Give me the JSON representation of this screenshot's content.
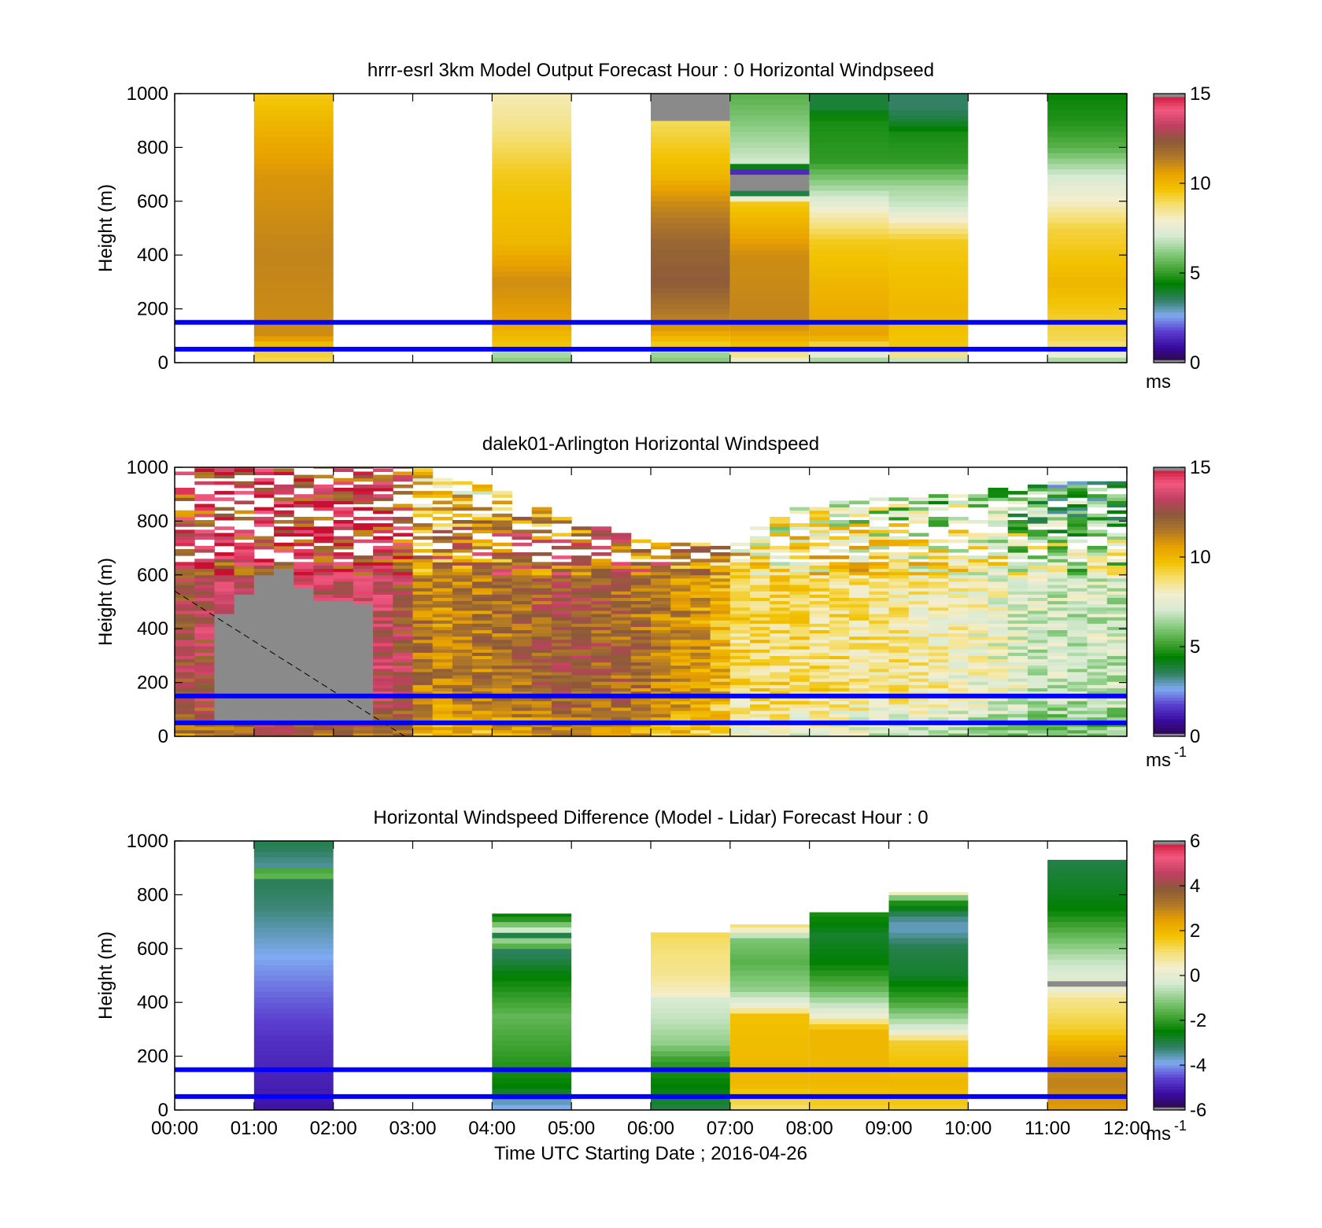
{
  "figure": {
    "xlabel": "Time UTC  Starting Date ; 2016-04-26"
  },
  "colors": {
    "speed_colormap": [
      "#2a0a40",
      "#3a0aa0",
      "#5a3fd0",
      "#7faaf0",
      "#2f8060",
      "#008000",
      "#49a83a",
      "#8ccd84",
      "#d6ead2",
      "#f3eed0",
      "#f5df70",
      "#f2c200",
      "#e8a000",
      "#b07828",
      "#8b5a3a",
      "#c04060",
      "#f25880",
      "#c81030"
    ],
    "diff_colormap": [
      "#2a0a40",
      "#3a0aa0",
      "#5a3fd0",
      "#7faaf0",
      "#2f8060",
      "#008000",
      "#49a83a",
      "#8ccd84",
      "#d6ead2",
      "#f3eed0",
      "#f5df70",
      "#f2c200",
      "#e8a000",
      "#b07828",
      "#8b5a3a",
      "#c04060",
      "#f25880",
      "#c81030"
    ],
    "missing": "#8a8a8a",
    "reference_line": "#0000ff"
  },
  "chart_data": [
    {
      "id": "model",
      "type": "heatmap",
      "title": "hrrr-esrl 3km Model Output   Forecast Hour : 0 Horizontal Windpseed",
      "xlabel": "",
      "ylabel": "Height (m)",
      "xticks": [
        "00:00",
        "01:00",
        "02:00",
        "03:00",
        "04:00",
        "05:00",
        "06:00",
        "07:00",
        "08:00",
        "09:00",
        "10:00",
        "11:00",
        "12:00"
      ],
      "xtick_labels_visible": false,
      "xlim": [
        0,
        12
      ],
      "ylim": [
        0,
        1000
      ],
      "yticks": [
        0,
        200,
        400,
        600,
        800,
        1000
      ],
      "colorbar": {
        "range": [
          0,
          15
        ],
        "ticks": [
          0,
          5,
          10,
          15
        ],
        "unit": "ms",
        "unit_exp": ""
      },
      "reference_lines_m": [
        50,
        150
      ],
      "columns": [
        {
          "t0": 1,
          "t1": 2,
          "z_top": 1000,
          "profile": [
            [
              0,
              9
            ],
            [
              60,
              9.5
            ],
            [
              100,
              11
            ],
            [
              400,
              11.2
            ],
            [
              700,
              10.8
            ],
            [
              900,
              10
            ],
            [
              1000,
              9.5
            ]
          ]
        },
        {
          "t0": 4,
          "t1": 5,
          "z_top": 1000,
          "profile": [
            [
              0,
              6
            ],
            [
              30,
              6.5
            ],
            [
              60,
              9.5
            ],
            [
              150,
              10.5
            ],
            [
              300,
              11
            ],
            [
              450,
              10
            ],
            [
              700,
              9.5
            ],
            [
              900,
              8.5
            ],
            [
              1000,
              8.2
            ]
          ]
        },
        {
          "t0": 6,
          "t1": 7,
          "z_top": 1000,
          "profile": [
            [
              0,
              6
            ],
            [
              40,
              6.5
            ],
            [
              70,
              9.5
            ],
            [
              150,
              11.2
            ],
            [
              300,
              12.3
            ],
            [
              450,
              12
            ],
            [
              600,
              11
            ],
            [
              700,
              10
            ],
            [
              800,
              9.5
            ],
            [
              890,
              9
            ],
            [
              900,
              0
            ],
            [
              1000,
              0
            ]
          ]
        },
        {
          "t0": 7,
          "t1": 8,
          "z_top": 1000,
          "profile": [
            [
              0,
              7.2
            ],
            [
              50,
              9.5
            ],
            [
              150,
              11.2
            ],
            [
              400,
              11
            ],
            [
              600,
              9.5
            ],
            [
              650,
              0
            ],
            [
              700,
              0
            ],
            [
              750,
              7
            ],
            [
              900,
              6
            ],
            [
              1000,
              5.5
            ]
          ]
        },
        {
          "t0": 8,
          "t1": 9,
          "z_top": 1000,
          "profile": [
            [
              0,
              6
            ],
            [
              40,
              8
            ],
            [
              100,
              10.5
            ],
            [
              300,
              10
            ],
            [
              450,
              9.5
            ],
            [
              550,
              8.2
            ],
            [
              650,
              6.5
            ],
            [
              750,
              5
            ],
            [
              900,
              4.7
            ],
            [
              950,
              3.9
            ],
            [
              1000,
              3.9
            ]
          ]
        },
        {
          "t0": 9,
          "t1": 10,
          "z_top": 1000,
          "profile": [
            [
              0,
              6
            ],
            [
              40,
              9.5
            ],
            [
              200,
              10
            ],
            [
              450,
              9.5
            ],
            [
              520,
              8.2
            ],
            [
              580,
              7
            ],
            [
              650,
              6.5
            ],
            [
              750,
              5
            ],
            [
              850,
              4.7
            ],
            [
              900,
              3.9
            ],
            [
              950,
              3.5
            ],
            [
              1000,
              3.5
            ]
          ]
        },
        {
          "t0": 11,
          "t1": 12,
          "z_top": 1000,
          "profile": [
            [
              0,
              6
            ],
            [
              40,
              8.2
            ],
            [
              80,
              9
            ],
            [
              300,
              10
            ],
            [
              500,
              9.2
            ],
            [
              600,
              8
            ],
            [
              700,
              7
            ],
            [
              800,
              5.5
            ],
            [
              900,
              4.8
            ],
            [
              1000,
              4.5
            ]
          ]
        }
      ]
    },
    {
      "id": "lidar",
      "type": "heatmap",
      "title": "dalek01-Arlington  Horizontal Windspeed",
      "xlabel": "",
      "ylabel": "Height (m)",
      "xticks": [
        "00:00",
        "01:00",
        "02:00",
        "03:00",
        "04:00",
        "05:00",
        "06:00",
        "07:00",
        "08:00",
        "09:00",
        "10:00",
        "11:00",
        "12:00"
      ],
      "xtick_labels_visible": false,
      "xlim": [
        0,
        12
      ],
      "ylim": [
        0,
        1000
      ],
      "yticks": [
        0,
        200,
        400,
        600,
        800,
        1000
      ],
      "colorbar": {
        "range": [
          0,
          15
        ],
        "ticks": [
          0,
          5,
          10,
          15
        ],
        "unit": "ms",
        "unit_exp": "-1"
      },
      "reference_lines_m": [
        50,
        150
      ],
      "time_step_h": 0.25,
      "missing_region": {
        "t_start": 0.6,
        "t_end": 2.6,
        "z_top_series_m": [
          [
            0.6,
            450
          ],
          [
            1.0,
            560
          ],
          [
            1.3,
            650
          ],
          [
            1.6,
            560
          ],
          [
            1.9,
            500
          ],
          [
            2.3,
            500
          ],
          [
            2.6,
            480
          ]
        ]
      },
      "noise_level_line": [
        [
          0,
          540
        ],
        [
          2.9,
          0
        ]
      ],
      "column_top_series_m": [
        [
          0,
          1000
        ],
        [
          2.5,
          1000
        ],
        [
          3.0,
          1000
        ],
        [
          4.0,
          920
        ],
        [
          5.0,
          800
        ],
        [
          6.0,
          720
        ],
        [
          7.0,
          720
        ],
        [
          8.0,
          860
        ],
        [
          9.0,
          880
        ],
        [
          10.0,
          900
        ],
        [
          11.0,
          940
        ],
        [
          11.9,
          940
        ]
      ],
      "speed_by_time": [
        [
          0,
          12.5
        ],
        [
          1.0,
          13.5
        ],
        [
          2.0,
          13.5
        ],
        [
          2.8,
          13.2
        ],
        [
          3.2,
          11
        ],
        [
          4.0,
          11.5
        ],
        [
          5.0,
          12.5
        ],
        [
          6.0,
          11.5
        ],
        [
          6.8,
          10.5
        ],
        [
          7.1,
          9
        ],
        [
          8.0,
          9
        ],
        [
          9.0,
          8.5
        ],
        [
          10.0,
          8
        ],
        [
          11.0,
          7
        ],
        [
          11.9,
          7
        ]
      ]
    },
    {
      "id": "difference",
      "type": "heatmap",
      "title": "Horizontal Windspeed Difference (Model - Lidar) Forecast Hour : 0",
      "xlabel": "Time UTC  Starting Date ; 2016-04-26",
      "ylabel": "Height (m)",
      "xticks": [
        "00:00",
        "01:00",
        "02:00",
        "03:00",
        "04:00",
        "05:00",
        "06:00",
        "07:00",
        "08:00",
        "09:00",
        "10:00",
        "11:00",
        "12:00"
      ],
      "xtick_labels_visible": true,
      "xlim": [
        0,
        12
      ],
      "ylim": [
        0,
        1000
      ],
      "yticks": [
        0,
        200,
        400,
        600,
        800,
        1000
      ],
      "colorbar": {
        "range": [
          -6,
          6
        ],
        "ticks": [
          -6,
          -4,
          -2,
          0,
          2,
          4,
          6
        ],
        "unit": "ms",
        "unit_exp": "-1"
      },
      "reference_lines_m": [
        50,
        150
      ],
      "columns": [
        {
          "t0": 1,
          "t1": 2,
          "z_top": 1000,
          "profile": [
            [
              0,
              -5.2
            ],
            [
              100,
              -5
            ],
            [
              250,
              -4.8
            ],
            [
              400,
              -4.4
            ],
            [
              600,
              -3.8
            ],
            [
              750,
              -3.3
            ],
            [
              860,
              -3.1
            ],
            [
              880,
              0
            ],
            [
              900,
              -3.5
            ],
            [
              1000,
              -3
            ]
          ]
        },
        {
          "t0": 4,
          "t1": 5,
          "z_top": 730,
          "profile": [
            [
              0,
              -4
            ],
            [
              40,
              -3.5
            ],
            [
              80,
              -2.5
            ],
            [
              200,
              -2
            ],
            [
              350,
              -1.5
            ],
            [
              500,
              -2.5
            ],
            [
              560,
              -3
            ],
            [
              600,
              -3.2
            ],
            [
              620,
              0
            ],
            [
              650,
              -3
            ],
            [
              660,
              0
            ],
            [
              720,
              -2.5
            ]
          ]
        },
        {
          "t0": 6,
          "t1": 7,
          "z_top": 660,
          "profile": [
            [
              0,
              -3
            ],
            [
              180,
              -2
            ],
            [
              250,
              -1
            ],
            [
              350,
              -0.5
            ],
            [
              420,
              -0.3
            ],
            [
              430,
              0.4
            ],
            [
              500,
              0.8
            ],
            [
              600,
              1
            ],
            [
              650,
              1.2
            ]
          ]
        },
        {
          "t0": 7,
          "t1": 8,
          "z_top": 690,
          "profile": [
            [
              0,
              1
            ],
            [
              100,
              2
            ],
            [
              350,
              1.8
            ],
            [
              380,
              0.3
            ],
            [
              450,
              -1
            ],
            [
              550,
              -1.6
            ],
            [
              640,
              -1.2
            ],
            [
              660,
              0.2
            ],
            [
              690,
              1
            ]
          ]
        },
        {
          "t0": 8,
          "t1": 9,
          "z_top": 735,
          "profile": [
            [
              0,
              1.4
            ],
            [
              100,
              2
            ],
            [
              300,
              2
            ],
            [
              350,
              0.2
            ],
            [
              450,
              -1.5
            ],
            [
              550,
              -2.5
            ],
            [
              650,
              -2.8
            ],
            [
              735,
              -2.2
            ]
          ]
        },
        {
          "t0": 9,
          "t1": 10,
          "z_top": 810,
          "profile": [
            [
              0,
              1.5
            ],
            [
              100,
              2
            ],
            [
              250,
              1.5
            ],
            [
              300,
              -0.2
            ],
            [
              400,
              -1.8
            ],
            [
              500,
              -2.8
            ],
            [
              600,
              -3
            ],
            [
              680,
              -3.7
            ],
            [
              720,
              -3.3
            ],
            [
              780,
              -2
            ],
            [
              810,
              0.5
            ]
          ]
        },
        {
          "t0": 11,
          "t1": 12,
          "z_top": 930,
          "profile": [
            [
              0,
              2.5
            ],
            [
              100,
              3
            ],
            [
              200,
              2.6
            ],
            [
              300,
              1.5
            ],
            [
              420,
              0.8
            ],
            [
              450,
              0.1
            ],
            [
              550,
              -0.5
            ],
            [
              650,
              -1.5
            ],
            [
              750,
              -2.5
            ],
            [
              850,
              -2.8
            ],
            [
              930,
              -3
            ]
          ]
        }
      ]
    }
  ]
}
